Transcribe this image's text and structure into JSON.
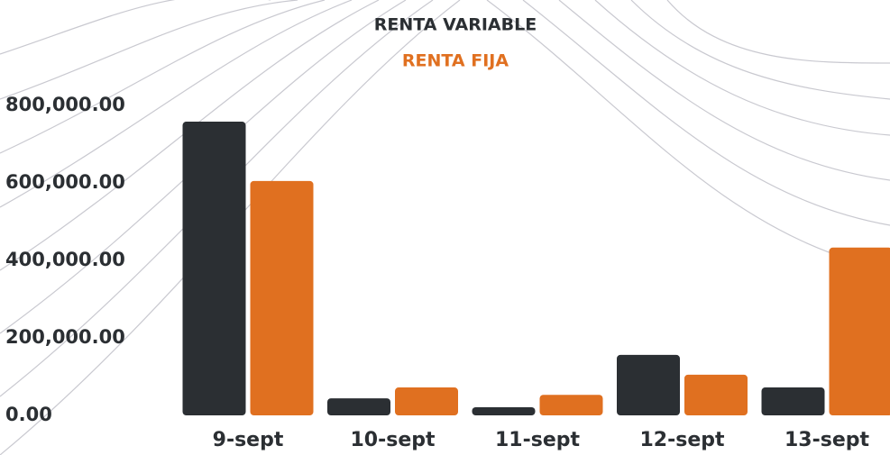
{
  "chart_data": {
    "type": "bar",
    "categories": [
      "9-sept",
      "10-sept",
      "11-sept",
      "12-sept",
      "13-sept"
    ],
    "series": [
      {
        "name": "RENTA VARIABLE",
        "color": "#2b2f33",
        "values": [
          758000,
          44000,
          21000,
          156000,
          72000
        ]
      },
      {
        "name": "RENTA FIJA",
        "color": "#e07020",
        "values": [
          605000,
          72000,
          53000,
          105000,
          433000
        ]
      }
    ],
    "ylim": [
      0,
      800000
    ],
    "yticks": [
      {
        "value": 0,
        "label": "0.00"
      },
      {
        "value": 200000,
        "label": "200,000.00"
      },
      {
        "value": 400000,
        "label": "400,000.00"
      },
      {
        "value": 600000,
        "label": "600,000.00"
      },
      {
        "value": 800000,
        "label": "800,000.00"
      }
    ]
  }
}
